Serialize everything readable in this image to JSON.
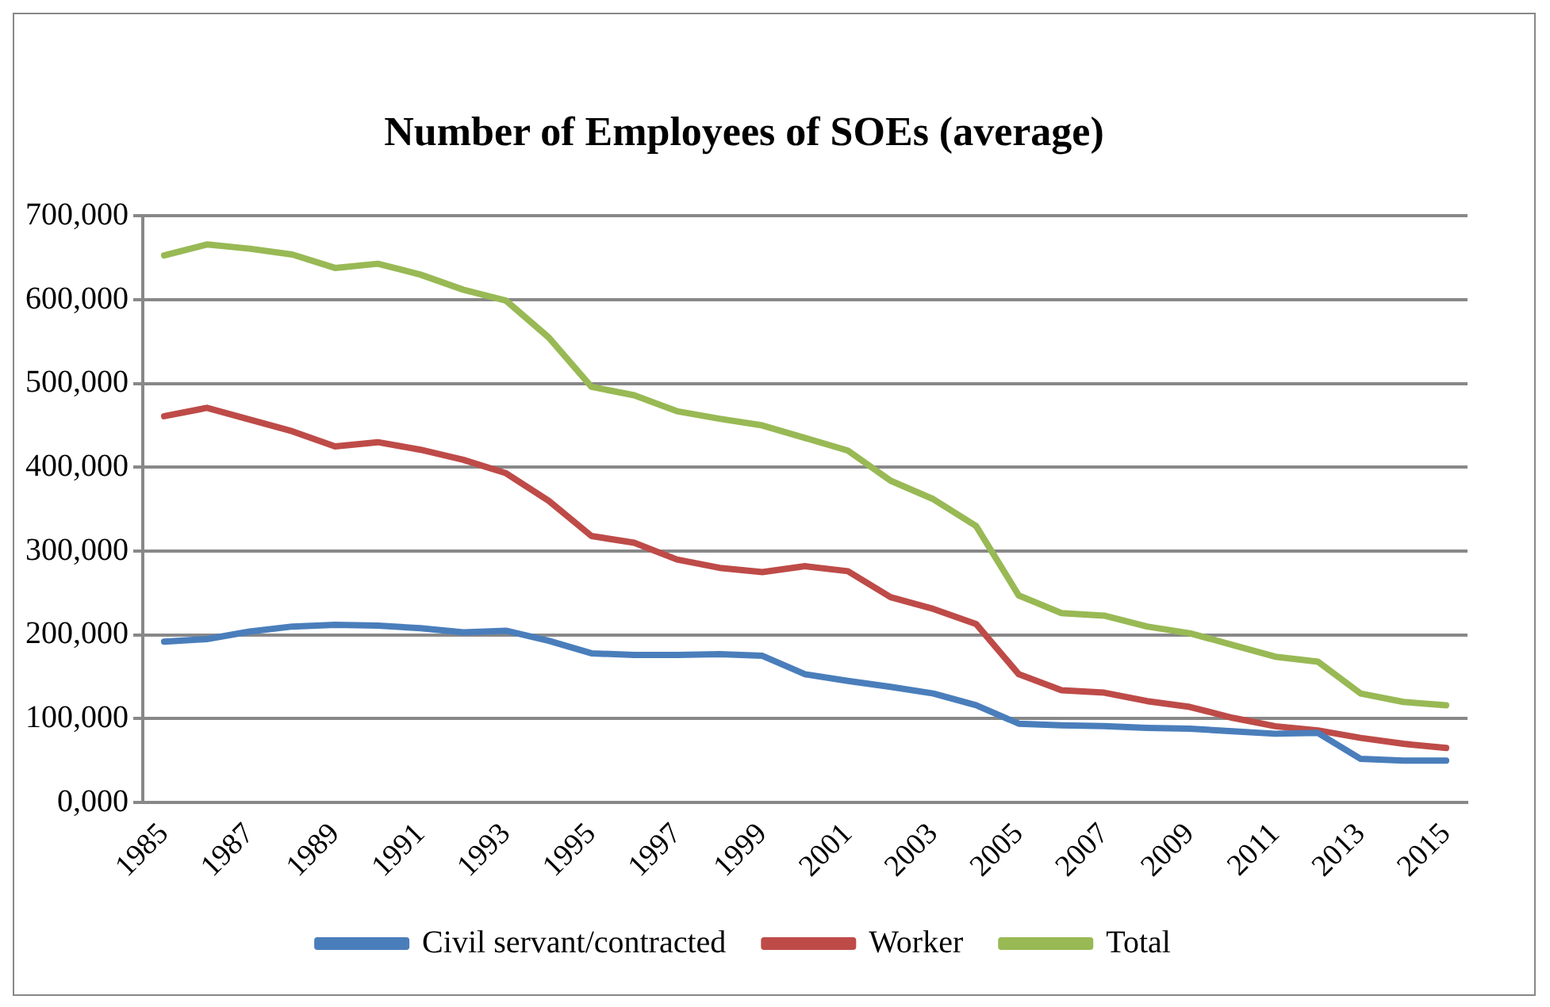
{
  "chart_data": {
    "type": "line",
    "title": "Number of Employees of SOEs (average)",
    "categories": [
      "1985",
      null,
      "1987",
      null,
      "1989",
      null,
      "1991",
      null,
      "1993",
      null,
      "1995",
      null,
      "1997",
      null,
      "1999",
      null,
      "2001",
      null,
      "2003",
      null,
      "2005",
      null,
      "2007",
      null,
      "2009",
      null,
      "2011",
      null,
      "2013",
      null,
      "2015"
    ],
    "series": [
      {
        "name": "Civil servant/contracted",
        "color": "#4a7ebb",
        "values": [
          192000,
          195000,
          204000,
          210000,
          212000,
          211000,
          208000,
          203000,
          205000,
          193000,
          178000,
          176000,
          176000,
          177000,
          175000,
          153000,
          145000,
          138000,
          130000,
          116000,
          94000,
          92000,
          91000,
          89000,
          88000,
          85000,
          82000,
          83000,
          52000,
          50000,
          50000
        ]
      },
      {
        "name": "Worker",
        "color": "#be4b48",
        "values": [
          461000,
          471000,
          457000,
          443000,
          425000,
          430000,
          421000,
          409000,
          393000,
          360000,
          318000,
          310000,
          290000,
          280000,
          275000,
          282000,
          276000,
          245000,
          231000,
          213000,
          153000,
          134000,
          131000,
          121000,
          114000,
          101000,
          91000,
          86000,
          77000,
          70000,
          65000
        ]
      },
      {
        "name": "Total",
        "color": "#98b954",
        "values": [
          653000,
          666000,
          661000,
          654000,
          638000,
          643000,
          630000,
          612000,
          599000,
          555000,
          496000,
          486000,
          467000,
          458000,
          450000,
          435000,
          420000,
          384000,
          362000,
          330000,
          247000,
          226000,
          223000,
          210000,
          202000,
          188000,
          174000,
          168000,
          130000,
          120000,
          116000
        ]
      }
    ],
    "ylim": [
      0,
      700000
    ],
    "yticks": [
      {
        "value": 0,
        "label": "0,000"
      },
      {
        "value": 100000,
        "label": "100,000"
      },
      {
        "value": 200000,
        "label": "200,000"
      },
      {
        "value": 300000,
        "label": "300,000"
      },
      {
        "value": 400000,
        "label": "400,000"
      },
      {
        "value": 500000,
        "label": "500,000"
      },
      {
        "value": 600000,
        "label": "600,000"
      },
      {
        "value": 700000,
        "label": "700,000"
      }
    ],
    "grid": "y",
    "legend": "bottom",
    "marker": "none",
    "line_style": "solid"
  }
}
